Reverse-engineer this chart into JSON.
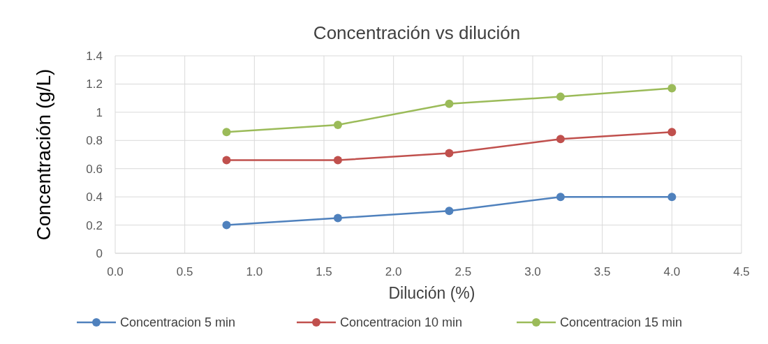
{
  "chart_data": {
    "type": "line",
    "title": "Concentración vs dilución",
    "xlabel": "Dilución (%)",
    "ylabel": "Concentración (g/L)",
    "x": [
      0.8,
      1.6,
      2.4,
      3.2,
      4.0
    ],
    "series": [
      {
        "name": "Concentracion 5 min",
        "color": "#4f81bd",
        "values": [
          0.2,
          0.25,
          0.3,
          0.4,
          0.4
        ]
      },
      {
        "name": "Concentracion 10 min",
        "color": "#c0504d",
        "values": [
          0.66,
          0.66,
          0.71,
          0.81,
          0.86
        ]
      },
      {
        "name": "Concentracion 15 min",
        "color": "#9bbb59",
        "values": [
          0.86,
          0.91,
          1.06,
          1.11,
          1.17
        ]
      }
    ],
    "xlim": [
      0,
      4.5
    ],
    "xticks": [
      {
        "value": 0,
        "label": "0.0"
      },
      0.5,
      {
        "value": 1,
        "label": "1.0"
      },
      1.5,
      {
        "value": 2,
        "label": "2.0"
      },
      2.5,
      {
        "value": 3,
        "label": "3.0"
      },
      3.5,
      {
        "value": 4,
        "label": "4.0"
      },
      4.5
    ],
    "ylim": [
      0,
      1.4
    ],
    "yticks": [
      0,
      0.2,
      0.4,
      0.6,
      0.8,
      1,
      1.2,
      1.4
    ],
    "grid": true,
    "legend": "bottom",
    "marker": "circle",
    "line_style": "solid"
  }
}
